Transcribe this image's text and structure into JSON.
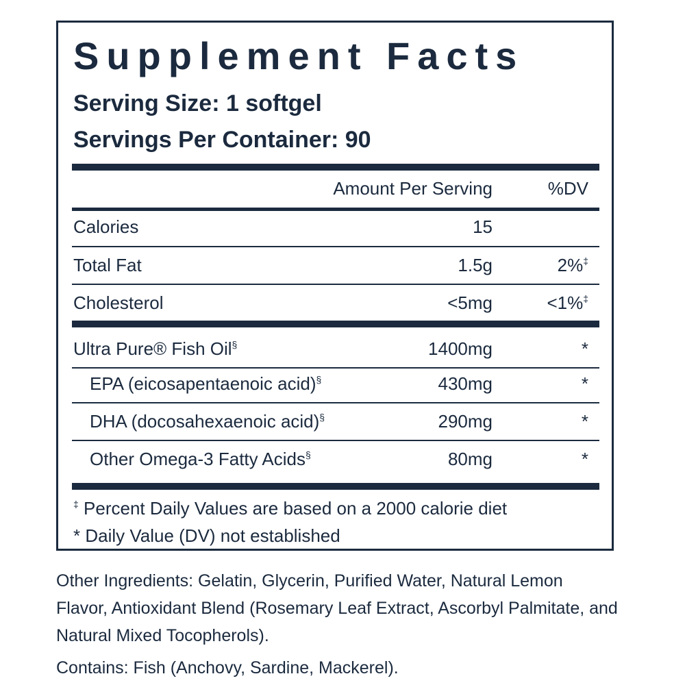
{
  "label": {
    "title": "Supplement Facts",
    "serving_size": "Serving Size: 1 softgel",
    "servings_per_container": "Servings Per Container: 90",
    "header": {
      "amount": "Amount Per Serving",
      "dv": "%DV"
    },
    "rows": [
      {
        "name": "Calories",
        "name_mark": "",
        "amount": "15",
        "dv": "",
        "dv_mark": ""
      },
      {
        "name": "Total Fat",
        "name_mark": "",
        "amount": "1.5g",
        "dv": "2%",
        "dv_mark": "‡"
      },
      {
        "name": "Cholesterol",
        "name_mark": "",
        "amount": "<5mg",
        "dv": "<1%",
        "dv_mark": "‡"
      },
      {
        "name": "Ultra Pure® Fish Oil",
        "name_mark": "§",
        "amount": "1400mg",
        "dv": "*",
        "dv_mark": ""
      },
      {
        "name": "EPA (eicosapentaenoic acid)",
        "name_mark": "§",
        "amount": "430mg",
        "dv": "*",
        "dv_mark": ""
      },
      {
        "name": "DHA (docosahexaenoic acid)",
        "name_mark": "§",
        "amount": "290mg",
        "dv": "*",
        "dv_mark": ""
      },
      {
        "name": "Other Omega-3 Fatty Acids",
        "name_mark": "§",
        "amount": "80mg",
        "dv": "*",
        "dv_mark": ""
      }
    ],
    "footnotes": {
      "dagger_mark": "‡",
      "dagger_text": " Percent Daily Values are based on a 2000 calorie diet",
      "asterisk_text": "* Daily Value (DV) not established"
    }
  },
  "other_ingredients": "Other Ingredients: Gelatin, Glycerin, Purified Water, Natural Lemon Flavor, Antioxidant Blend (Rosemary Leaf Extract, Ascorbyl Palmitate, and Natural Mixed Tocopherols).",
  "contains": "Contains: Fish (Anchovy, Sardine, Mackerel)."
}
